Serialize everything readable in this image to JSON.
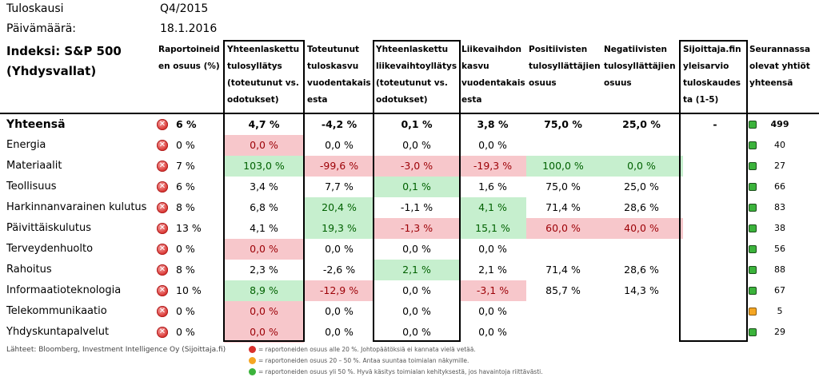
{
  "meta": {
    "period_label": "Tuloskausi",
    "period_value": "Q4/2015",
    "date_label": "Päivämäärä:",
    "date_value": "18.1.2016"
  },
  "index_title": [
    "Indeksi: S&P 500",
    "(Yhdysvallat)"
  ],
  "headers": {
    "reported": [
      "Raportoineid",
      "en osuus (%)"
    ],
    "eps_surprise": [
      "Yhteenlaskettu",
      "tulosyllätys",
      "(toteutunut vs.",
      "odotukset)"
    ],
    "eps_growth": [
      "Toteutunut",
      "tuloskasvu",
      "vuodentakais",
      "esta"
    ],
    "rev_surprise": [
      "Yhteenlaskettu",
      "liikevaihtoyllätys",
      "(toteutunut vs.",
      "odotukset)"
    ],
    "rev_growth": [
      "Liikevaihdon",
      "kasvu",
      "vuodentakais",
      "esta"
    ],
    "positive": [
      "Positiivisten",
      "tulosyllättäjien",
      "osuus"
    ],
    "negative": [
      "Negatiivisten",
      "tulosyllättäjien",
      "osuus"
    ],
    "rating": [
      "Sijoittaja.fin",
      "yleisarvio",
      "tuloskaudes",
      "ta (1-5)"
    ],
    "followed": [
      "Seurannassa",
      "olevat yhtiöt",
      "yhteensä"
    ]
  },
  "rows": [
    {
      "name": "Yhteensä",
      "reported": "6 %",
      "eps_surprise": "4,7 %",
      "eps_growth": "-4,2 %",
      "rev_surprise": "0,1 %",
      "rev_growth": "3,8 %",
      "positive": "75,0 %",
      "negative": "25,0 %",
      "rating": "-",
      "count": "499",
      "status": "g",
      "hl": {}
    },
    {
      "name": "Energia",
      "reported": "0 %",
      "eps_surprise": "0,0 %",
      "eps_growth": "0,0 %",
      "rev_surprise": "0,0 %",
      "rev_growth": "0,0 %",
      "positive": "",
      "negative": "",
      "rating": "",
      "count": "40",
      "status": "g",
      "hl": {
        "eps_surprise": "red"
      }
    },
    {
      "name": "Materiaalit",
      "reported": "7 %",
      "eps_surprise": "103,0 %",
      "eps_growth": "-99,6 %",
      "rev_surprise": "-3,0 %",
      "rev_growth": "-19,3 %",
      "positive": "100,0 %",
      "negative": "0,0 %",
      "rating": "",
      "count": "27",
      "status": "g",
      "hl": {
        "eps_surprise": "grn",
        "eps_growth": "red",
        "rev_surprise": "red",
        "rev_growth": "red",
        "positive": "grn",
        "negative": "grn"
      }
    },
    {
      "name": "Teollisuus",
      "reported": "6 %",
      "eps_surprise": "3,4 %",
      "eps_growth": "7,7 %",
      "rev_surprise": "0,1 %",
      "rev_growth": "1,6 %",
      "positive": "75,0 %",
      "negative": "25,0 %",
      "rating": "",
      "count": "66",
      "status": "g",
      "hl": {
        "rev_surprise": "grn"
      }
    },
    {
      "name": "Harkinnanvarainen kulutus",
      "reported": "8 %",
      "eps_surprise": "6,8 %",
      "eps_growth": "20,4 %",
      "rev_surprise": "-1,1 %",
      "rev_growth": "4,1 %",
      "positive": "71,4 %",
      "negative": "28,6 %",
      "rating": "",
      "count": "83",
      "status": "g",
      "hl": {
        "eps_growth": "grn",
        "rev_growth": "grn"
      }
    },
    {
      "name": "Päivittäiskulutus",
      "reported": "13 %",
      "eps_surprise": "4,1 %",
      "eps_growth": "19,3 %",
      "rev_surprise": "-1,3 %",
      "rev_growth": "15,1 %",
      "positive": "60,0 %",
      "negative": "40,0 %",
      "rating": "",
      "count": "38",
      "status": "g",
      "hl": {
        "eps_growth": "grn",
        "rev_surprise": "red",
        "rev_growth": "grn",
        "positive": "red",
        "negative": "red"
      }
    },
    {
      "name": "Terveydenhuolto",
      "reported": "0 %",
      "eps_surprise": "0,0 %",
      "eps_growth": "0,0 %",
      "rev_surprise": "0,0 %",
      "rev_growth": "0,0 %",
      "positive": "",
      "negative": "",
      "rating": "",
      "count": "56",
      "status": "g",
      "hl": {
        "eps_surprise": "red"
      }
    },
    {
      "name": "Rahoitus",
      "reported": "8 %",
      "eps_surprise": "2,3 %",
      "eps_growth": "-2,6 %",
      "rev_surprise": "2,1 %",
      "rev_growth": "2,1 %",
      "positive": "71,4 %",
      "negative": "28,6 %",
      "rating": "",
      "count": "88",
      "status": "g",
      "hl": {
        "rev_surprise": "grn"
      }
    },
    {
      "name": "Informaatioteknologia",
      "reported": "10 %",
      "eps_surprise": "8,9 %",
      "eps_growth": "-12,9 %",
      "rev_surprise": "0,0 %",
      "rev_growth": "-3,1 %",
      "positive": "85,7 %",
      "negative": "14,3 %",
      "rating": "",
      "count": "67",
      "status": "g",
      "hl": {
        "eps_surprise": "grn",
        "eps_growth": "red",
        "rev_growth": "red"
      }
    },
    {
      "name": "Telekommunikaatio",
      "reported": "0 %",
      "eps_surprise": "0,0 %",
      "eps_growth": "0,0 %",
      "rev_surprise": "0,0 %",
      "rev_growth": "0,0 %",
      "positive": "",
      "negative": "",
      "rating": "",
      "count": "5",
      "status": "y",
      "hl": {
        "eps_surprise": "red"
      }
    },
    {
      "name": "Yhdyskuntapalvelut",
      "reported": "0 %",
      "eps_surprise": "0,0 %",
      "eps_growth": "0,0 %",
      "rev_surprise": "0,0 %",
      "rev_growth": "0,0 %",
      "positive": "",
      "negative": "",
      "rating": "",
      "count": "29",
      "status": "g",
      "hl": {
        "eps_surprise": "red"
      }
    }
  ],
  "footer": {
    "source": "Lähteet: Bloomberg, Investment Intelligence Oy (Sijoittaja.fi)",
    "legend": [
      {
        "color": "#d9302c",
        "text": "= raportoneiden osuus alle 20 %. Johtopäätöksiä ei kannata vielä vetää."
      },
      {
        "color": "#f5a623",
        "text": "= raportoneiden osuus 20 – 50 %. Antaa suuntaa toimialan näkymille."
      },
      {
        "color": "#3bb33b",
        "text": "= raportoneiden osuus yli 50 %. Hyvä käsitys toimialan kehityksestä, jos havaintoja riittävästi."
      }
    ]
  }
}
